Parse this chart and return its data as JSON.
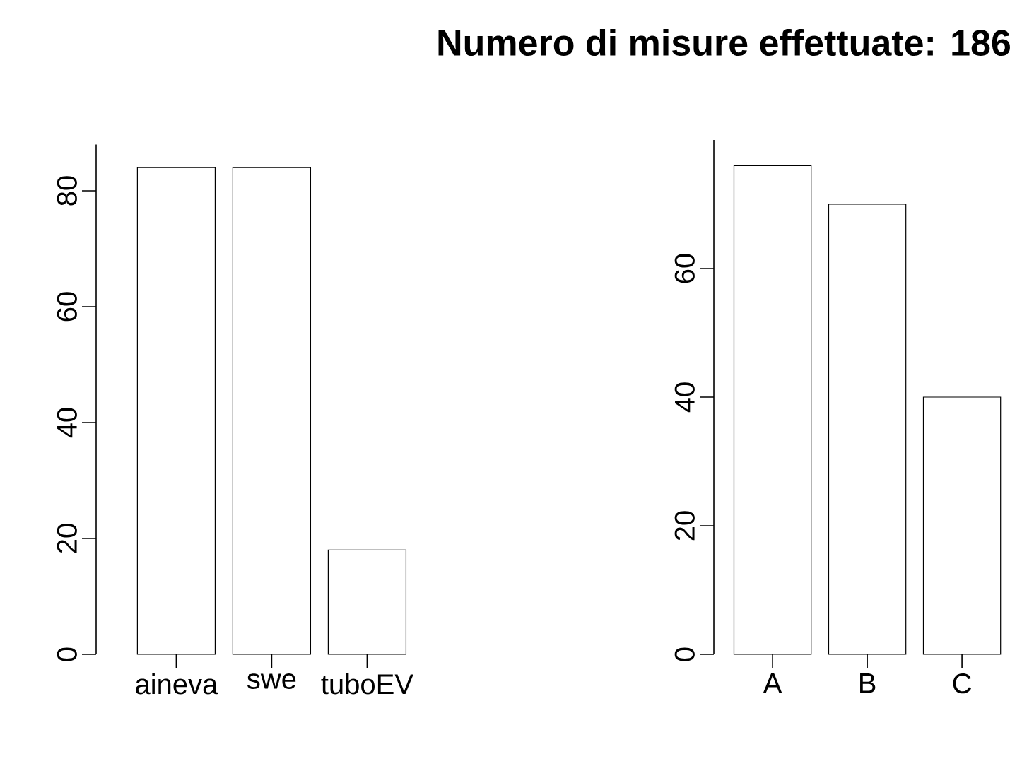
{
  "chart_data": [
    {
      "type": "bar",
      "categories": [
        "aineva",
        "swe",
        "tuboEV"
      ],
      "values": [
        84,
        84,
        18
      ],
      "color": "#ffffff",
      "ylim": [
        0,
        88
      ],
      "yticks": [
        0,
        20,
        40,
        60,
        80
      ],
      "grid": false
    },
    {
      "type": "bar",
      "title": "Numero di misure effettuate: 186",
      "categories": [
        "A",
        "B",
        "C"
      ],
      "values": [
        76,
        70,
        40
      ],
      "color": "#ffffff",
      "ylim": [
        0,
        80
      ],
      "yticks": [
        0,
        20,
        40,
        60
      ],
      "grid": false
    }
  ]
}
